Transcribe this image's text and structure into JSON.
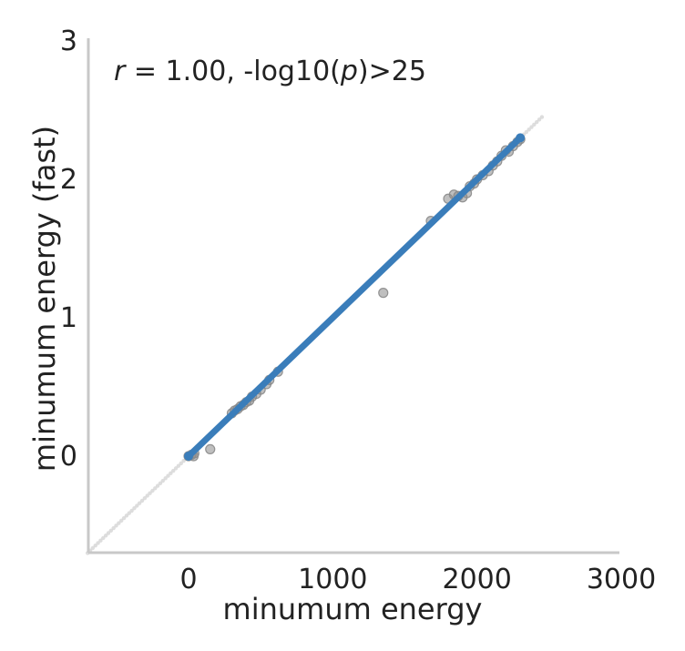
{
  "chart_data": {
    "type": "scatter",
    "xlabel": "minumum energy",
    "ylabel": "minumum energy (fast)",
    "xlim": [
      -700,
      3000
    ],
    "ylim": [
      -0.65,
      3.0
    ],
    "x_ticks": [
      0,
      1000,
      2000,
      3000
    ],
    "x_tick_labels": [
      "0",
      "1000",
      "2000",
      "3000"
    ],
    "y_ticks": [
      0,
      1,
      2,
      3
    ],
    "y_tick_labels": [
      "0",
      "1",
      "2",
      "3"
    ],
    "annotation": {
      "r_symbol": "r",
      "text": " = 1.00, -log10(",
      "p_symbol": "p",
      "text_end": ")>25"
    },
    "grid": false,
    "colors": {
      "points": "#8a8a8a",
      "fit_line": "#3a7dba",
      "axis": "#c8c8c8",
      "confidence_band": "#cfcfcf"
    },
    "points": [
      {
        "x": 0,
        "y": 0.0
      },
      {
        "x": 20,
        "y": 0.01
      },
      {
        "x": 35,
        "y": 0.0
      },
      {
        "x": 40,
        "y": 0.02
      },
      {
        "x": 150,
        "y": 0.05
      },
      {
        "x": 300,
        "y": 0.31
      },
      {
        "x": 320,
        "y": 0.33
      },
      {
        "x": 340,
        "y": 0.34
      },
      {
        "x": 360,
        "y": 0.36
      },
      {
        "x": 380,
        "y": 0.37
      },
      {
        "x": 400,
        "y": 0.39
      },
      {
        "x": 420,
        "y": 0.4
      },
      {
        "x": 440,
        "y": 0.43
      },
      {
        "x": 470,
        "y": 0.45
      },
      {
        "x": 500,
        "y": 0.48
      },
      {
        "x": 540,
        "y": 0.52
      },
      {
        "x": 560,
        "y": 0.55
      },
      {
        "x": 620,
        "y": 0.61
      },
      {
        "x": 1350,
        "y": 1.18
      },
      {
        "x": 1680,
        "y": 1.7
      },
      {
        "x": 1800,
        "y": 1.86
      },
      {
        "x": 1840,
        "y": 1.89
      },
      {
        "x": 1870,
        "y": 1.88
      },
      {
        "x": 1900,
        "y": 1.87
      },
      {
        "x": 1930,
        "y": 1.9
      },
      {
        "x": 1950,
        "y": 1.95
      },
      {
        "x": 1980,
        "y": 1.97
      },
      {
        "x": 2000,
        "y": 2.0
      },
      {
        "x": 2040,
        "y": 2.03
      },
      {
        "x": 2080,
        "y": 2.06
      },
      {
        "x": 2110,
        "y": 2.1
      },
      {
        "x": 2140,
        "y": 2.13
      },
      {
        "x": 2170,
        "y": 2.17
      },
      {
        "x": 2200,
        "y": 2.21
      },
      {
        "x": 2220,
        "y": 2.2
      },
      {
        "x": 2250,
        "y": 2.24
      },
      {
        "x": 2280,
        "y": 2.27
      },
      {
        "x": 2300,
        "y": 2.29
      }
    ],
    "fit": {
      "x_start": 0,
      "x_end": 2300,
      "slope": 0.001,
      "intercept": 0.0
    },
    "confidence_band_range": [
      -700,
      2450
    ]
  }
}
